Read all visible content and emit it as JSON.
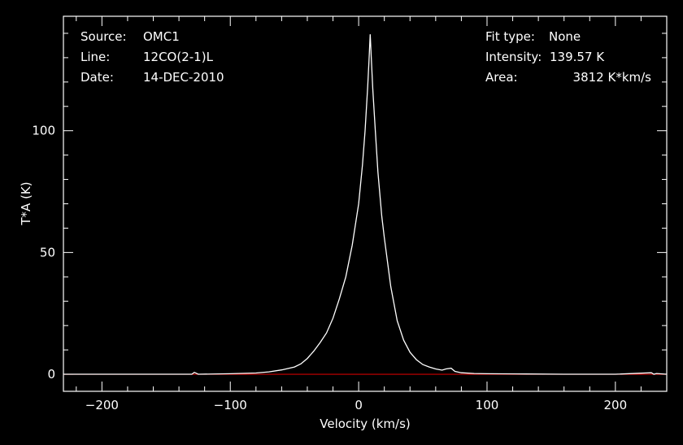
{
  "header": {
    "left": [
      {
        "label": "Source:",
        "value": "OMC1"
      },
      {
        "label": "Line:",
        "value": "12CO(2-1)L"
      },
      {
        "label": "Date:",
        "value": "14-DEC-2010"
      }
    ],
    "right": [
      {
        "label": "Fit type:",
        "value": "None"
      },
      {
        "label": "Intensity:",
        "value": "139.57 K"
      },
      {
        "label": "Area:",
        "value": "3812 K*km/s"
      }
    ]
  },
  "chart_data": {
    "type": "line",
    "xlabel": "Velocity (km/s)",
    "ylabel": "T*A (K)",
    "xlim": [
      -230,
      240
    ],
    "ylim": [
      -7,
      147
    ],
    "x_ticks": [
      -200,
      -100,
      0,
      100,
      200
    ],
    "y_ticks": [
      0,
      50,
      100
    ],
    "series": [
      {
        "color": "#ffffff",
        "x": [
          -230,
          -200,
          -150,
          -130,
          -128,
          -125,
          -100,
          -80,
          -70,
          -60,
          -50,
          -45,
          -40,
          -35,
          -30,
          -25,
          -20,
          -15,
          -10,
          -5,
          0,
          3,
          5,
          7,
          8,
          9,
          10,
          11,
          13,
          15,
          18,
          20,
          25,
          30,
          35,
          40,
          45,
          50,
          55,
          60,
          65,
          68,
          72,
          75,
          80,
          90,
          100,
          130,
          160,
          200,
          228,
          230,
          232,
          240
        ],
        "y": [
          0,
          0,
          0,
          0,
          0.8,
          0,
          0.2,
          0.5,
          1,
          1.8,
          3,
          4.3,
          6.5,
          9.5,
          13,
          17,
          23,
          31,
          40,
          53,
          70,
          86,
          100,
          118,
          128,
          139.57,
          128,
          117,
          100,
          83,
          65,
          56,
          36,
          22,
          14,
          9,
          6,
          4,
          3,
          2.2,
          1.7,
          2.2,
          2.5,
          1.2,
          0.6,
          0.3,
          0.2,
          0.1,
          0,
          0,
          0.6,
          0,
          0.3,
          0
        ]
      }
    ],
    "baseline": {
      "y": 0,
      "color": "#cc0000"
    }
  }
}
